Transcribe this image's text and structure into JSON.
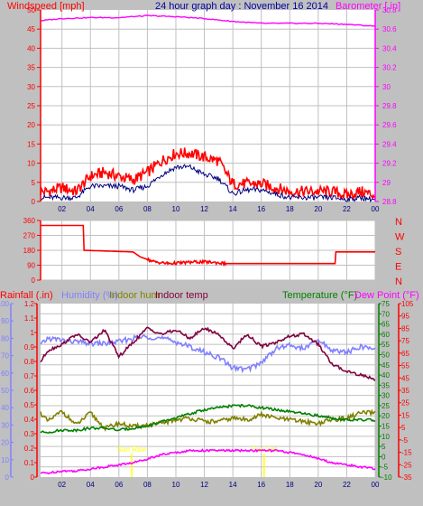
{
  "colors": {
    "bg": "#c0c0c0",
    "plot_bg": "#ffffff",
    "grid": "#c0c0c0",
    "wind_axis": "#ff0000",
    "baro_axis": "#ff00ff",
    "title": "#0000a0",
    "wind_max": "#ff0000",
    "wind_avg": "#000080",
    "barometer": "#ff00ff",
    "direction": "#ff0000",
    "rain_axis": "#ff0000",
    "humidity": "#8080ff",
    "indoor_hum": "#808000",
    "indoor_temp": "#800040",
    "temperature": "#008000",
    "dew_point": "#ff00ff",
    "sun": "#ffff00"
  },
  "chart_data": [
    {
      "type": "line",
      "title": "24 hour graph day : November 16 2014",
      "x_ticks": [
        "02",
        "04",
        "06",
        "08",
        "10",
        "12",
        "14",
        "16",
        "18",
        "20",
        "22",
        "00"
      ],
      "y_left": {
        "label": "Windspeed [mph]",
        "range": [
          0,
          50
        ],
        "ticks": [
          "0",
          "5",
          "10",
          "15",
          "20",
          "25",
          "30",
          "35",
          "40",
          "45",
          "50"
        ]
      },
      "y_right": {
        "label": "Barometer [.in]",
        "range": [
          28.8,
          30.8
        ],
        "ticks": [
          "28.8",
          "29",
          "29.2",
          "29.4",
          "29.6",
          "29.8",
          "30",
          "30.2",
          "30.4",
          "30.6",
          "30.8"
        ]
      },
      "series": [
        {
          "name": "wind max",
          "hours": [
            0,
            1,
            2,
            3,
            4,
            5,
            6,
            7,
            8,
            9,
            10,
            11,
            12,
            13,
            14,
            15,
            16,
            17,
            18,
            19,
            20,
            21,
            22,
            23,
            24
          ],
          "values": [
            2,
            2,
            3,
            2,
            6,
            7,
            6,
            5,
            7,
            10,
            12,
            12,
            11,
            10,
            4,
            4,
            4,
            3,
            2,
            2,
            2,
            2,
            1,
            2,
            1
          ]
        },
        {
          "name": "wind avg",
          "hours": [
            0,
            1,
            2,
            3,
            4,
            5,
            6,
            7,
            8,
            9,
            10,
            11,
            12,
            13,
            14,
            15,
            16,
            17,
            18,
            19,
            20,
            21,
            22,
            23,
            24
          ],
          "values": [
            1,
            1,
            1,
            1,
            4,
            4,
            4,
            3,
            4,
            7,
            9,
            9,
            7,
            6,
            2,
            3,
            3,
            2,
            1,
            1,
            1,
            1,
            0.5,
            1,
            0.5
          ]
        },
        {
          "name": "barometer",
          "hours": [
            0,
            2,
            4,
            6,
            8,
            10,
            12,
            14,
            16,
            18,
            20,
            22,
            24
          ],
          "values": [
            30.68,
            30.71,
            30.72,
            30.72,
            30.74,
            30.73,
            30.71,
            30.68,
            30.66,
            30.66,
            30.66,
            30.65,
            30.63
          ]
        }
      ]
    },
    {
      "type": "line",
      "title": "",
      "y_right_labels": [
        "N",
        "W",
        "S",
        "E",
        "N"
      ],
      "y_left": {
        "range": [
          0,
          360
        ],
        "ticks": [
          "0",
          "90",
          "180",
          "270",
          "360"
        ]
      },
      "series": [
        {
          "name": "wind direction",
          "hours": [
            0,
            3.5,
            3.5,
            7,
            7.5,
            8.5,
            9.5,
            10.5,
            11.5,
            12.5,
            13.5,
            13.5,
            21.2,
            21.2,
            24
          ],
          "values": [
            330,
            330,
            180,
            170,
            140,
            110,
            100,
            105,
            110,
            108,
            100,
            100,
            100,
            170,
            170
          ]
        }
      ]
    },
    {
      "type": "line",
      "title": "",
      "legend": [
        "Rainfall (.in)",
        "Humidity (%)",
        "Indoor hum",
        "Indoor temp",
        "Temperature (°F)",
        "Dew Point (°F)"
      ],
      "y_axes": [
        {
          "label": "Rainfall (.in)",
          "range": [
            0,
            1.2
          ],
          "ticks": [
            "0",
            "0.1",
            "0.2",
            "0.3",
            "0.4",
            "0.5",
            "0.6",
            "0.7",
            "0.8",
            "0.9",
            "1",
            "1.1",
            "1.2"
          ]
        },
        {
          "label": "Humidity (%)",
          "range": [
            0,
            100
          ],
          "ticks": [
            "0",
            "10",
            "20",
            "30",
            "40",
            "50",
            "60",
            "70",
            "80",
            "90",
            "100"
          ]
        },
        {
          "label": "Temperature (°F)",
          "range": [
            -10,
            75
          ],
          "ticks": [
            "-10",
            "-5",
            "0",
            "5",
            "10",
            "15",
            "20",
            "25",
            "30",
            "35",
            "40",
            "45",
            "50",
            "55",
            "60",
            "65",
            "70",
            "75"
          ]
        },
        {
          "label": "Dew Point (°F)",
          "range": [
            -35,
            105
          ],
          "ticks": [
            "-35",
            "-25",
            "-15",
            "-5",
            "5",
            "15",
            "25",
            "35",
            "45",
            "55",
            "65",
            "75",
            "85",
            "95",
            "105"
          ]
        }
      ],
      "annotations": [
        "Sun Rise",
        "Sun Set"
      ],
      "series": [
        {
          "name": "Humidity (%)",
          "hours": [
            0,
            1,
            2,
            3,
            4,
            5,
            6,
            7,
            8,
            9,
            10,
            11,
            12,
            13,
            14,
            15,
            16,
            17,
            18,
            19,
            20,
            21,
            22,
            23,
            24
          ],
          "values": [
            72,
            80,
            79,
            78,
            77,
            77,
            78,
            80,
            81,
            80,
            78,
            75,
            72,
            69,
            63,
            62,
            66,
            74,
            76,
            74,
            79,
            73,
            72,
            75,
            74
          ]
        },
        {
          "name": "Indoor hum",
          "hours": [
            0,
            1,
            2,
            3,
            4,
            5,
            6,
            7,
            8,
            9,
            10,
            11,
            12,
            13,
            14,
            15,
            16,
            17,
            18,
            19,
            20,
            21,
            22,
            23,
            24
          ],
          "values": [
            42,
            32,
            38,
            30,
            37,
            28,
            31,
            29,
            30,
            31,
            33,
            34,
            32,
            32,
            34,
            33,
            36,
            34,
            33,
            32,
            31,
            33,
            34,
            37,
            37
          ]
        },
        {
          "name": "Indoor temp",
          "hours": [
            0,
            1,
            2,
            3,
            4,
            5,
            6,
            7,
            8,
            9,
            10,
            11,
            12,
            13,
            14,
            15,
            16,
            17,
            18,
            19,
            20,
            21,
            22,
            23,
            24
          ],
          "values": [
            41,
            52,
            55,
            60,
            56,
            62,
            49,
            56,
            63,
            60,
            62,
            58,
            63,
            60,
            53,
            60,
            54,
            56,
            59,
            60,
            55,
            45,
            42,
            40,
            38
          ]
        },
        {
          "name": "Temperature (°F)",
          "hours": [
            0,
            1,
            2,
            3,
            4,
            5,
            6,
            7,
            8,
            9,
            10,
            11,
            12,
            13,
            14,
            15,
            16,
            17,
            18,
            19,
            20,
            21,
            22,
            23,
            24
          ],
          "values": [
            12,
            12,
            13,
            13,
            14,
            14,
            13,
            14,
            15,
            17,
            19,
            21,
            23,
            24,
            25,
            25,
            24,
            23,
            22,
            21,
            20,
            19,
            18,
            18,
            18
          ]
        },
        {
          "name": "Dew Point (°F)",
          "hours": [
            0,
            1,
            2,
            3,
            4,
            5,
            6,
            7,
            8,
            9,
            10,
            11,
            12,
            13,
            14,
            15,
            16,
            17,
            18,
            19,
            20,
            21,
            22,
            23,
            24
          ],
          "values": [
            -8,
            -8,
            -7,
            -7,
            -6,
            -5,
            -4,
            -3,
            -1,
            1,
            2,
            3,
            3,
            3,
            3,
            3,
            3,
            3,
            2,
            1,
            -1,
            -3,
            -4,
            -5,
            -6
          ]
        }
      ]
    }
  ]
}
